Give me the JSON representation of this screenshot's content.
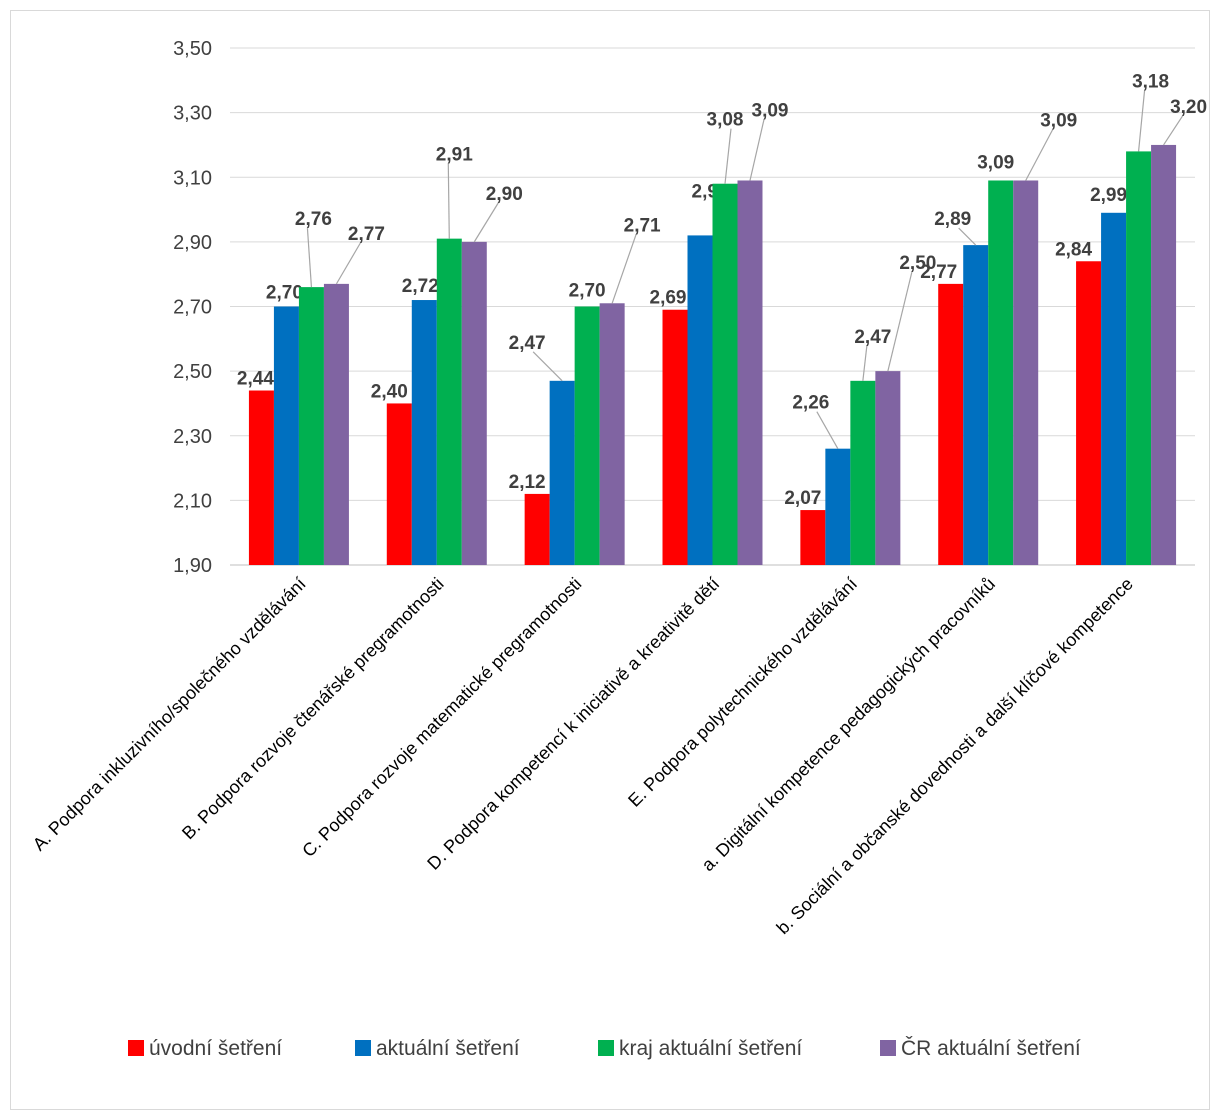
{
  "chart_data": {
    "type": "bar",
    "title": "",
    "xlabel": "",
    "ylabel": "",
    "ylim": [
      1.9,
      3.5
    ],
    "yticks": [
      "1,90",
      "2,10",
      "2,30",
      "2,50",
      "2,70",
      "2,90",
      "3,10",
      "3,30",
      "3,50"
    ],
    "grid": true,
    "legend_position": "bottom",
    "categories": [
      "A. Podpora inkluzivního/společného vzdělávání",
      "B. Podpora rozvoje čtenářské pregramotnosti",
      "C. Podpora rozvoje matematické pregramotnosti",
      "D. Podpora kompetencí k  iniciativě a kreativitě dětí",
      "E. Podpora polytechnického vzdělávání",
      "a. Digitální kompetence pedagogických pracovníků",
      "b. Sociální a občanské dovednosti a další klíčové kompetence"
    ],
    "series": [
      {
        "name": "úvodní šetření",
        "color": "#ff0000",
        "values": [
          2.44,
          2.4,
          2.12,
          2.69,
          2.07,
          2.77,
          2.84
        ],
        "labels": [
          "2,44",
          "2,40",
          "2,12",
          "2,69",
          "2,07",
          "2,77",
          "2,84"
        ]
      },
      {
        "name": "aktuální šetření",
        "color": "#0070c0",
        "values": [
          2.7,
          2.72,
          2.47,
          2.92,
          2.26,
          2.89,
          2.99
        ],
        "labels": [
          "2,70",
          "2,72",
          "2,47",
          "2,92",
          "2,26",
          "2,89",
          "2,99"
        ]
      },
      {
        "name": "kraj aktuální šetření",
        "color": "#00b050",
        "values": [
          2.76,
          2.91,
          2.7,
          3.08,
          2.47,
          3.09,
          3.18
        ],
        "labels": [
          "2,76",
          "2,91",
          "2,70",
          "3,08",
          "2,47",
          "3,09",
          "3,18"
        ]
      },
      {
        "name": "ČR aktuální šetření",
        "color": "#8064a2",
        "values": [
          2.77,
          2.9,
          2.71,
          3.09,
          2.5,
          3.09,
          3.2
        ],
        "labels": [
          "2,77",
          "2,90",
          "2,71",
          "3,09",
          "2,50",
          "3,09",
          "3,20"
        ]
      }
    ]
  }
}
